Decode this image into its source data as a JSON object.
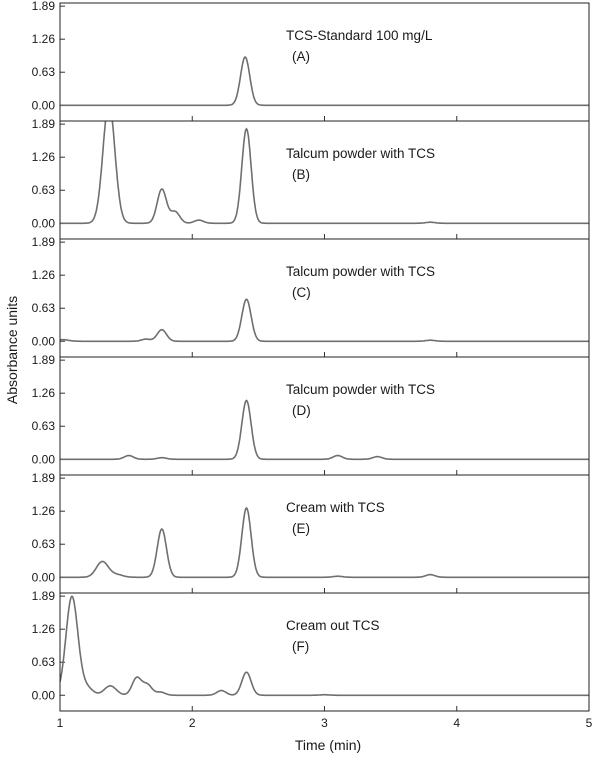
{
  "chart_data": {
    "type": "line",
    "xlabel": "Time (min)",
    "ylabel": "Absorbance units",
    "xlim": [
      1,
      5
    ],
    "ylim": [
      -0.3,
      1.95
    ],
    "x_ticks": [
      "1",
      "2",
      "3",
      "4",
      "5"
    ],
    "y_ticks": [
      "0.00",
      "0.63",
      "1.26",
      "1.89"
    ],
    "line_color": "#6f6f6f",
    "panels": [
      {
        "title": "TCS-Standard 100 mg/L",
        "label": "(A)",
        "peaks": [
          {
            "x": 2.4,
            "y": 0.92
          }
        ]
      },
      {
        "title": "Talcum powder with TCS",
        "label": "(B)",
        "peaks": [
          {
            "x": 1.37,
            "y": 2.3
          },
          {
            "x": 1.77,
            "y": 0.65
          },
          {
            "x": 1.87,
            "y": 0.22
          },
          {
            "x": 2.05,
            "y": 0.06
          },
          {
            "x": 2.41,
            "y": 1.8
          },
          {
            "x": 3.8,
            "y": 0.02
          }
        ]
      },
      {
        "title": "Talcum powder with TCS",
        "label": "(C)",
        "peaks": [
          {
            "x": 1.02,
            "y": 0.03
          },
          {
            "x": 1.65,
            "y": 0.04
          },
          {
            "x": 1.77,
            "y": 0.22
          },
          {
            "x": 2.41,
            "y": 0.8
          },
          {
            "x": 3.8,
            "y": 0.02
          }
        ]
      },
      {
        "title": "Talcum powder with TCS",
        "label": "(D)",
        "peaks": [
          {
            "x": 1.52,
            "y": 0.07
          },
          {
            "x": 1.77,
            "y": 0.03
          },
          {
            "x": 2.41,
            "y": 1.12
          },
          {
            "x": 3.1,
            "y": 0.07
          },
          {
            "x": 3.4,
            "y": 0.05
          }
        ]
      },
      {
        "title": "Cream with TCS",
        "label": "(E)",
        "peaks": [
          {
            "x": 1.32,
            "y": 0.3
          },
          {
            "x": 1.43,
            "y": 0.05
          },
          {
            "x": 1.77,
            "y": 0.92
          },
          {
            "x": 2.41,
            "y": 1.32
          },
          {
            "x": 3.1,
            "y": 0.02
          },
          {
            "x": 3.8,
            "y": 0.05
          }
        ]
      },
      {
        "title": "Cream out TCS",
        "label": "(F)",
        "peaks": [
          {
            "x": 1.09,
            "y": 1.88
          },
          {
            "x": 1.2,
            "y": 0.15
          },
          {
            "x": 1.38,
            "y": 0.18
          },
          {
            "x": 1.58,
            "y": 0.33
          },
          {
            "x": 1.66,
            "y": 0.2
          },
          {
            "x": 1.76,
            "y": 0.06
          },
          {
            "x": 2.22,
            "y": 0.09
          },
          {
            "x": 2.41,
            "y": 0.44
          },
          {
            "x": 3.0,
            "y": 0.01
          }
        ]
      }
    ]
  }
}
